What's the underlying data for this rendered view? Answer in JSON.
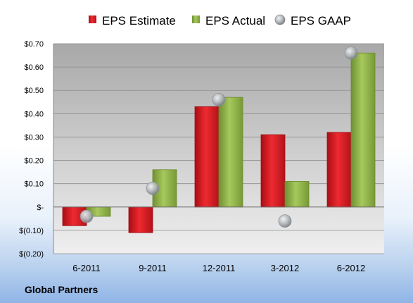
{
  "footer": {
    "company": "Global Partners"
  },
  "chart_data": {
    "type": "bar",
    "title": "",
    "xlabel": "",
    "ylabel": "",
    "categories": [
      "6-2011",
      "9-2011",
      "12-2011",
      "3-2012",
      "6-2012"
    ],
    "series": [
      {
        "name": "EPS Estimate",
        "type": "bar",
        "color": "#d81b22",
        "values": [
          -0.08,
          -0.11,
          0.43,
          0.31,
          0.32
        ]
      },
      {
        "name": "EPS Actual",
        "type": "bar",
        "color": "#8fb343",
        "values": [
          -0.04,
          0.16,
          0.47,
          0.11,
          0.66
        ]
      },
      {
        "name": "EPS GAAP",
        "type": "scatter",
        "color": "#9aa0a6",
        "values": [
          -0.04,
          0.08,
          0.46,
          -0.06,
          0.66
        ]
      }
    ],
    "ylim": [
      -0.2,
      0.7
    ],
    "yticks": [
      {
        "value": 0.7,
        "label": "$0.70"
      },
      {
        "value": 0.6,
        "label": "$0.60"
      },
      {
        "value": 0.5,
        "label": "$0.50"
      },
      {
        "value": 0.4,
        "label": "$0.40"
      },
      {
        "value": 0.3,
        "label": "$0.30"
      },
      {
        "value": 0.2,
        "label": "$0.20"
      },
      {
        "value": 0.1,
        "label": "$0.10"
      },
      {
        "value": 0.0,
        "label": "$-"
      },
      {
        "value": -0.1,
        "label": "$(0.10)"
      },
      {
        "value": -0.2,
        "label": "$(0.20)"
      }
    ],
    "grid": true,
    "legend": "top"
  }
}
